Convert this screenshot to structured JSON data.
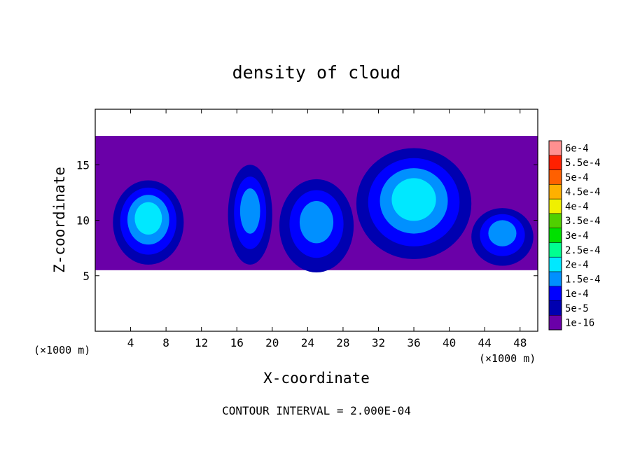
{
  "chart_data": {
    "type": "heatmap",
    "title": "density of cloud",
    "xlabel": "X-coordinate",
    "ylabel": "Z-coordinate",
    "x_unit_left": "(×1000 m)",
    "x_unit_right": "(×1000 m)",
    "footer": "CONTOUR INTERVAL = 2.000E-04",
    "xlim": [
      0,
      50
    ],
    "ylim": [
      0,
      20
    ],
    "x_ticks": [
      4,
      8,
      12,
      16,
      20,
      24,
      28,
      32,
      36,
      40,
      44,
      48
    ],
    "x_tick_labels": [
      "4",
      "8",
      "12",
      "16",
      "20",
      "24",
      "28",
      "32",
      "36",
      "40",
      "44",
      "48"
    ],
    "y_ticks": [
      5,
      10,
      15
    ],
    "y_tick_labels": [
      "5",
      "10",
      "15"
    ],
    "colorbar": {
      "levels": [
        {
          "label": "1e-16",
          "color": "#6a00a8"
        },
        {
          "label": "5e-5",
          "color": "#0000b0"
        },
        {
          "label": "1e-4",
          "color": "#0000ff"
        },
        {
          "label": "1.5e-4",
          "color": "#0090ff"
        },
        {
          "label": "2e-4",
          "color": "#00e8ff"
        },
        {
          "label": "2.5e-4",
          "color": "#00ff90"
        },
        {
          "label": "3e-4",
          "color": "#00e000"
        },
        {
          "label": "3.5e-4",
          "color": "#50d000"
        },
        {
          "label": "4e-4",
          "color": "#f0f000"
        },
        {
          "label": "4.5e-4",
          "color": "#ffb000"
        },
        {
          "label": "5e-4",
          "color": "#ff6000"
        },
        {
          "label": "5.5e-4",
          "color": "#ff2000"
        },
        {
          "label": "6e-4",
          "color": "#ff9090"
        }
      ]
    },
    "cloud_layer": {
      "z_bottom": 5.5,
      "z_top": 17.6,
      "x_start": 0,
      "x_end": 50
    },
    "cells": [
      {
        "x_center": 6.0,
        "z_center": 9.8,
        "half_width": 4.0,
        "half_height": 3.8,
        "peak": 0.00019
      },
      {
        "x_center": 17.5,
        "z_center": 10.5,
        "half_width": 2.5,
        "half_height": 4.5,
        "peak": 0.00013
      },
      {
        "x_center": 25.0,
        "z_center": 9.5,
        "half_width": 4.2,
        "half_height": 4.2,
        "peak": 0.00017
      },
      {
        "x_center": 36.0,
        "z_center": 11.5,
        "half_width": 6.5,
        "half_height": 5.0,
        "peak": 0.00021
      },
      {
        "x_center": 46.0,
        "z_center": 8.5,
        "half_width": 3.5,
        "half_height": 2.6,
        "peak": 0.00015
      }
    ]
  }
}
